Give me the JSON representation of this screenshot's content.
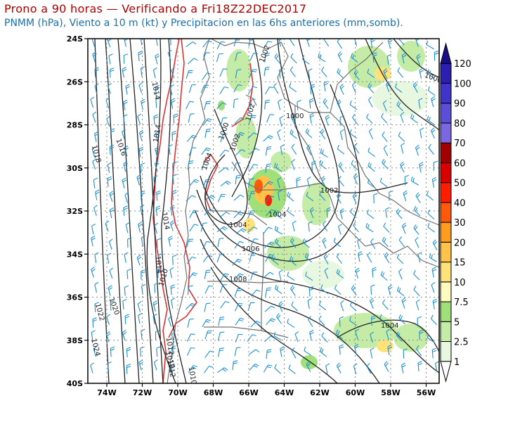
{
  "title": "Prono a 90 horas — Verificando a Fri18Z22DEC2017",
  "subtitle": "PNMM (hPa), Viento a 10 m (kt) y Precipitacion en las 6hs anteriores (mm,somb).",
  "lat_ticks": [
    "24S",
    "26S",
    "28S",
    "30S",
    "32S",
    "34S",
    "36S",
    "38S",
    "40S"
  ],
  "lon_ticks": [
    "74W",
    "72W",
    "70W",
    "68W",
    "66W",
    "64W",
    "62W",
    "60W",
    "58W",
    "56W"
  ],
  "colorbar": {
    "labels": [
      "1",
      "2.5",
      "5",
      "7.5",
      "10",
      "15",
      "20",
      "30",
      "40",
      "50",
      "60",
      "70",
      "80",
      "90",
      "100",
      "120"
    ],
    "colors": [
      "#ffffff",
      "#e8f7e0",
      "#c5eca6",
      "#9fe07a",
      "#fffac0",
      "#ffe27a",
      "#ffc34a",
      "#ff9b1e",
      "#ff5a0a",
      "#ff1e00",
      "#d80000",
      "#a00000",
      "#7b68e0",
      "#5a4fd6",
      "#4035c8",
      "#2a1fb0",
      "#1a0d8a"
    ]
  },
  "isobar_labels": [
    "1002",
    "1000",
    "1002",
    "1004",
    "1006",
    "1008",
    "1004",
    "1010",
    "1012",
    "1014",
    "1016",
    "1018",
    "1020",
    "1022",
    "1024",
    "1014",
    "1014",
    "1002",
    "1004",
    "1000",
    "1002",
    "1000",
    "1004",
    "1012",
    "1010",
    "1012",
    "1014"
  ],
  "colors": {
    "title": "#b00000",
    "subtitle": "#1a6fa8",
    "isobar": "#222222",
    "wind_barb": "#1a8fd0",
    "terrain_contour": "#e03030",
    "border": "#707070"
  }
}
